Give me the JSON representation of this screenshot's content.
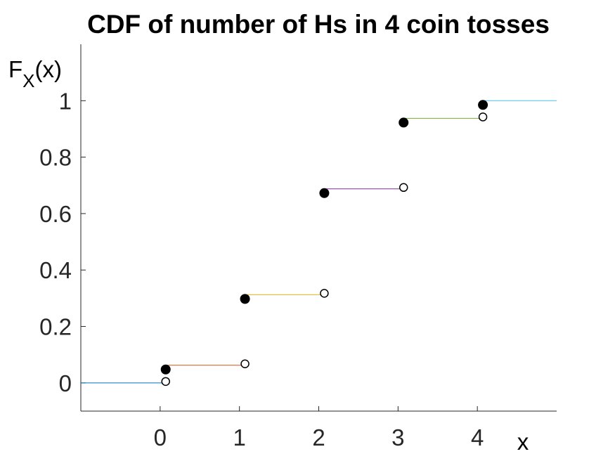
{
  "chart_data": {
    "type": "line",
    "title": "CDF of number of Hs in 4 coin tosses",
    "xlabel": "x",
    "ylabel": {
      "main": "F",
      "sub": "X",
      "suffix": "(x)"
    },
    "xlim": [
      -1,
      5
    ],
    "ylim": [
      -0.1,
      1.2
    ],
    "xticks": [
      0,
      1,
      2,
      3,
      4
    ],
    "yticks": [
      0,
      0.2,
      0.4,
      0.6,
      0.8,
      1
    ],
    "ytick_labels": [
      "0",
      "0.2",
      "0.4",
      "0.6",
      "0.8",
      "1"
    ],
    "grid": false,
    "steps": [
      {
        "x_start": -1,
        "x_end": 0,
        "y": 0,
        "color": "#0072BD"
      },
      {
        "x_start": 0,
        "x_end": 1,
        "y": 0.0625,
        "color": "#D95319"
      },
      {
        "x_start": 1,
        "x_end": 2,
        "y": 0.3125,
        "color": "#EDB120"
      },
      {
        "x_start": 2,
        "x_end": 3,
        "y": 0.6875,
        "color": "#7E2F8E"
      },
      {
        "x_start": 3,
        "x_end": 4,
        "y": 0.9375,
        "color": "#77AC30"
      },
      {
        "x_start": 4,
        "x_end": 5,
        "y": 1,
        "color": "#4DBEEE"
      }
    ],
    "closed_points": [
      {
        "x": 0,
        "y": 0.0625
      },
      {
        "x": 1,
        "y": 0.3125
      },
      {
        "x": 2,
        "y": 0.6875
      },
      {
        "x": 3,
        "y": 0.9375
      },
      {
        "x": 4,
        "y": 1
      }
    ],
    "open_points": [
      {
        "x": 0,
        "y": 0
      },
      {
        "x": 1,
        "y": 0.0625
      },
      {
        "x": 2,
        "y": 0.3125
      },
      {
        "x": 3,
        "y": 0.6875
      },
      {
        "x": 4,
        "y": 0.9375
      }
    ]
  }
}
